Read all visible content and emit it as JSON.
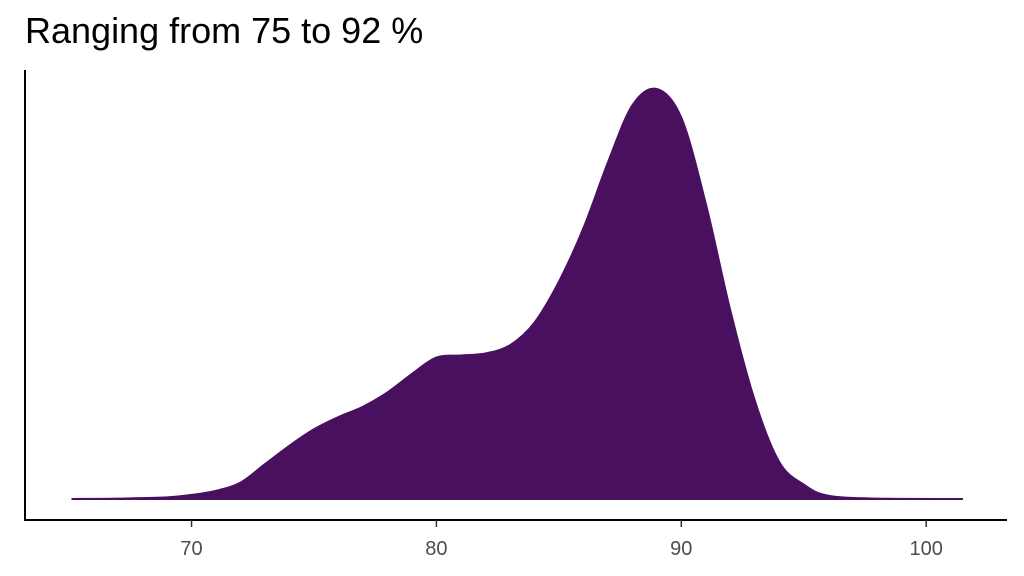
{
  "chart_data": {
    "type": "area",
    "title": "Ranging from 75 to 92 %",
    "xlabel": "",
    "ylabel": "",
    "xlim": [
      63.2,
      103.3
    ],
    "ylim": [
      0,
      1
    ],
    "xticks": [
      70,
      80,
      90,
      100
    ],
    "grid": false,
    "fill_color": "#48105E",
    "series": [
      {
        "x": [
          65.1,
          67,
          69,
          70,
          71,
          72,
          73,
          74,
          75,
          76,
          77,
          78,
          79,
          80,
          81,
          82,
          83,
          84,
          85,
          86,
          87,
          88,
          89,
          90,
          91,
          92,
          93,
          94,
          95,
          96,
          98,
          101.5
        ],
        "y": [
          0,
          0.001,
          0.004,
          0.01,
          0.02,
          0.04,
          0.085,
          0.13,
          0.17,
          0.2,
          0.225,
          0.26,
          0.305,
          0.345,
          0.35,
          0.355,
          0.375,
          0.43,
          0.53,
          0.66,
          0.82,
          0.96,
          1.0,
          0.93,
          0.72,
          0.46,
          0.24,
          0.09,
          0.035,
          0.008,
          0.001,
          0
        ]
      }
    ]
  }
}
